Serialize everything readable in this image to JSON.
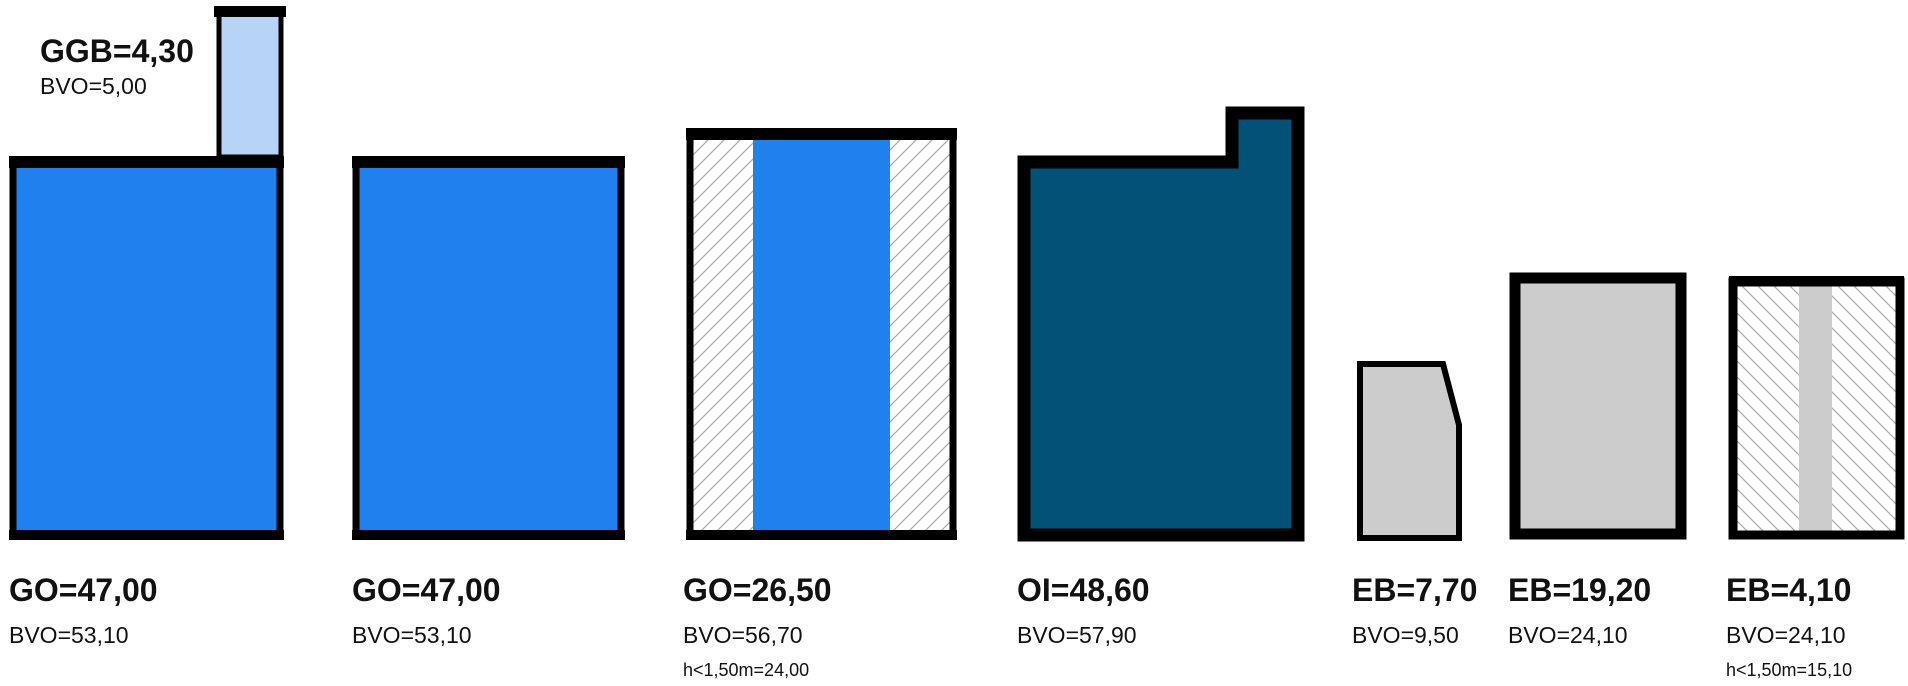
{
  "colors": {
    "blue": "#2080ee",
    "light_blue": "#b7d4f6",
    "dark_blue": "#035176",
    "grey": "#cccccc",
    "hatch": "#aaaaaa",
    "outline": "#000000"
  },
  "blocks": [
    {
      "main": "GO=47,00",
      "bvo": "BVO=53,10",
      "fill": "blue",
      "addon": {
        "main": "GGB=4,30",
        "bvo": "BVO=5,00",
        "fill": "light_blue"
      }
    },
    {
      "main": "GO=47,00",
      "bvo": "BVO=53,10",
      "fill": "blue"
    },
    {
      "main": "GO=26,50",
      "bvo": "BVO=56,70",
      "note": "h<1,50m=24,00",
      "fill": "blue",
      "hatched_sides": true
    },
    {
      "main": "OI=48,60",
      "bvo": "BVO=57,90",
      "fill": "dark_blue"
    },
    {
      "main": "EB=7,70",
      "bvo": "BVO=9,50",
      "fill": "grey"
    },
    {
      "main": "EB=19,20",
      "bvo": "BVO=24,10",
      "fill": "grey"
    },
    {
      "main": "EB=4,10",
      "bvo": "BVO=24,10",
      "note": "h<1,50m=15,10",
      "fill": "grey",
      "hatched_sides": true
    }
  ]
}
